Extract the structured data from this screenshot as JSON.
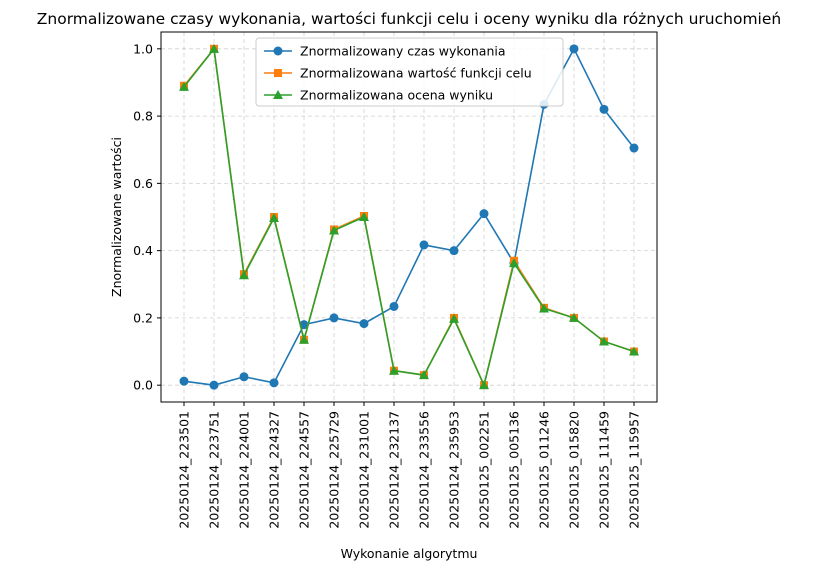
{
  "chart_data": {
    "type": "line",
    "title": "Znormalizowane czasy wykonania, wartości funkcji celu i oceny wyniku dla różnych uruchomień",
    "xlabel": "Wykonanie algorytmu",
    "ylabel": "Znormalizowane wartości",
    "ylim": [
      -0.05,
      1.05
    ],
    "yticks": [
      "0.0",
      "0.2",
      "0.4",
      "0.6",
      "0.8",
      "1.0"
    ],
    "grid": true,
    "legend_position": "upper-center",
    "categories": [
      "20250124_223501",
      "20250124_223751",
      "20250124_224001",
      "20250124_224327",
      "20250124_224557",
      "20250124_225729",
      "20250124_231001",
      "20250124_232137",
      "20250124_233556",
      "20250124_235953",
      "20250125_002251",
      "20250125_005136",
      "20250125_011246",
      "20250125_015820",
      "20250125_111459",
      "20250125_115957"
    ],
    "series": [
      {
        "name": "Znormalizowany czas wykonania",
        "color": "#1f77b4",
        "marker": "circle",
        "values": [
          0.012,
          0.0,
          0.025,
          0.007,
          0.18,
          0.2,
          0.183,
          0.234,
          0.417,
          0.4,
          0.51,
          0.363,
          0.835,
          1.0,
          0.82,
          0.705
        ]
      },
      {
        "name": "Znormalizowana wartość funkcji celu",
        "color": "#ff7f0e",
        "marker": "square",
        "values": [
          0.89,
          1.0,
          0.33,
          0.5,
          0.135,
          0.463,
          0.503,
          0.043,
          0.03,
          0.2,
          0.0,
          0.37,
          0.23,
          0.2,
          0.13,
          0.1
        ]
      },
      {
        "name": "Znormalizowana ocena wyniku",
        "color": "#2ca02c",
        "marker": "triangle",
        "values": [
          0.887,
          1.0,
          0.327,
          0.497,
          0.135,
          0.46,
          0.5,
          0.043,
          0.03,
          0.197,
          0.0,
          0.363,
          0.228,
          0.2,
          0.13,
          0.1
        ]
      }
    ]
  }
}
